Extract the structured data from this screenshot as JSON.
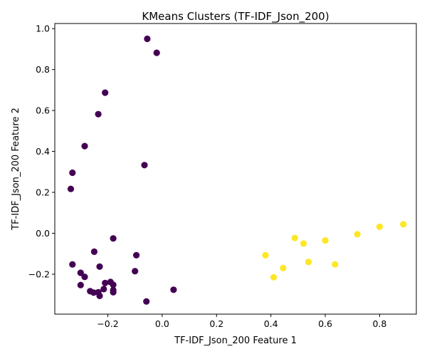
{
  "chart_data": {
    "type": "scatter",
    "title": "KMeans Clusters (TF-IDF_Json_200)",
    "xlabel": "TF-IDF_Json_200 Feature 1",
    "ylabel": "TF-IDF_Json_200 Feature 2",
    "xlim": [
      -0.395,
      0.935
    ],
    "ylim": [
      -0.395,
      1.025
    ],
    "xticks": [
      -0.2,
      0.0,
      0.2,
      0.4,
      0.6,
      0.8
    ],
    "xtick_labels": [
      "−0.2",
      "0.0",
      "0.2",
      "0.4",
      "0.6",
      "0.8"
    ],
    "yticks": [
      -0.2,
      0.0,
      0.2,
      0.4,
      0.6,
      0.8,
      1.0
    ],
    "ytick_labels": [
      "−0.2",
      "0.0",
      "0.2",
      "0.4",
      "0.6",
      "0.8",
      "1.0"
    ],
    "grid": false,
    "legend": "none",
    "colors": {
      "cluster_0": "#440154",
      "cluster_1": "#fde725"
    },
    "series": [
      {
        "cluster": 0,
        "points": [
          [
            -0.055,
            0.95
          ],
          [
            -0.02,
            0.882
          ],
          [
            -0.21,
            0.687
          ],
          [
            -0.235,
            0.582
          ],
          [
            -0.285,
            0.426
          ],
          [
            -0.33,
            0.296
          ],
          [
            -0.065,
            0.333
          ],
          [
            -0.336,
            0.217
          ],
          [
            -0.18,
            -0.025
          ],
          [
            -0.25,
            -0.09
          ],
          [
            -0.095,
            -0.107
          ],
          [
            -0.33,
            -0.152
          ],
          [
            -0.23,
            -0.163
          ],
          [
            -0.3,
            -0.193
          ],
          [
            -0.1,
            -0.185
          ],
          [
            -0.285,
            -0.213
          ],
          [
            -0.21,
            -0.243
          ],
          [
            -0.19,
            -0.238
          ],
          [
            -0.18,
            -0.252
          ],
          [
            -0.3,
            -0.253
          ],
          [
            -0.215,
            -0.273
          ],
          [
            -0.265,
            -0.283
          ],
          [
            -0.252,
            -0.29
          ],
          [
            -0.235,
            -0.288
          ],
          [
            -0.18,
            -0.278
          ],
          [
            -0.18,
            -0.288
          ],
          [
            -0.23,
            -0.306
          ],
          [
            0.042,
            -0.276
          ],
          [
            -0.058,
            -0.333
          ]
        ]
      },
      {
        "cluster": 1,
        "points": [
          [
            0.38,
            -0.107
          ],
          [
            0.488,
            -0.023
          ],
          [
            0.52,
            -0.05
          ],
          [
            0.6,
            -0.035
          ],
          [
            0.718,
            -0.005
          ],
          [
            0.8,
            0.032
          ],
          [
            0.887,
            0.044
          ],
          [
            0.445,
            -0.17
          ],
          [
            0.41,
            -0.215
          ],
          [
            0.538,
            -0.14
          ],
          [
            0.636,
            -0.152
          ]
        ]
      }
    ]
  }
}
